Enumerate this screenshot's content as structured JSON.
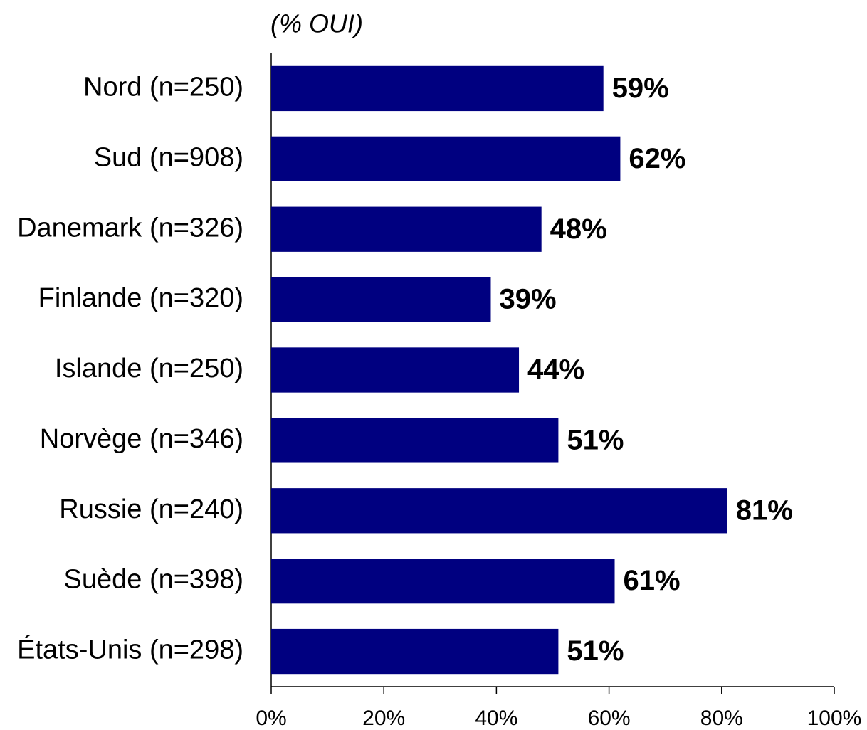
{
  "chart_data": {
    "type": "bar",
    "orientation": "horizontal",
    "title": "(% OUI)",
    "categories": [
      "Nord (n=250)",
      "Sud (n=908)",
      "Danemark (n=326)",
      "Finlande (n=320)",
      "Islande (n=250)",
      "Norvège (n=346)",
      "Russie (n=240)",
      "Suède (n=398)",
      "États-Unis (n=298)"
    ],
    "values": [
      59,
      62,
      48,
      39,
      44,
      51,
      81,
      61,
      51
    ],
    "value_labels": [
      "59%",
      "62%",
      "48%",
      "39%",
      "44%",
      "51%",
      "81%",
      "61%",
      "51%"
    ],
    "color": "#000080",
    "xlim": [
      0,
      100
    ],
    "xticks": [
      {
        "value": 0,
        "label": "0%"
      },
      {
        "value": 20,
        "label": "20%"
      },
      {
        "value": 40,
        "label": "40%"
      },
      {
        "value": 60,
        "label": "60%"
      },
      {
        "value": 80,
        "label": "80%"
      },
      {
        "value": 100,
        "label": "100%"
      }
    ],
    "grid": false
  }
}
